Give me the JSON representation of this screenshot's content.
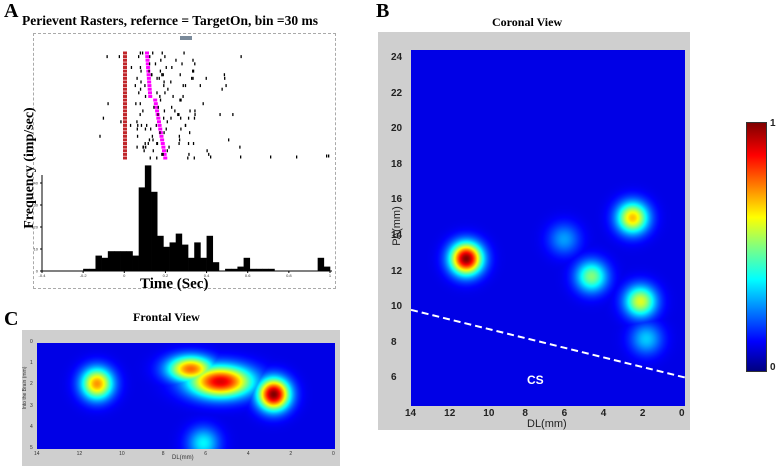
{
  "panels": {
    "a": {
      "letter": "A",
      "title": "Perievent Rasters, refernce = TargetOn, bin =30 ms",
      "ylabel": "Frequency (imp/sec)",
      "xlabel": "Time (Sec)",
      "marker_colors": {
        "reference": "#c0262a",
        "response": "#ff00ff",
        "spike": "#000000"
      }
    },
    "b": {
      "letter": "B",
      "title": "Coronal View",
      "ylabel": "PA(mm)",
      "xlabel": "DL(mm)",
      "annotation": "CS",
      "yticks": [
        "24",
        "22",
        "20",
        "18",
        "16",
        "14",
        "12",
        "10",
        "8",
        "6"
      ],
      "xticks": [
        "14",
        "12",
        "10",
        "8",
        "6",
        "4",
        "2",
        "0"
      ]
    },
    "c": {
      "letter": "C",
      "title": "Frontal View",
      "ylabel": "Into the Brain (mm)",
      "xlabel": "DL(mm)",
      "yticks": [
        "0",
        "1",
        "2",
        "3",
        "4",
        "5"
      ],
      "xticks": [
        "14",
        "12",
        "10",
        "8",
        "6",
        "4",
        "2",
        "0"
      ]
    },
    "colorbar": {
      "max_label": "1",
      "min_label": "0",
      "colormap": "jet"
    }
  },
  "chart_data": [
    {
      "type": "bar",
      "title": "Perievent Rasters, refernce = TargetOn, bin =30 ms",
      "xlabel": "Time (Sec)",
      "ylabel": "Frequency (imp/sec)",
      "bin_width": 0.03,
      "xlim": [
        -0.4,
        1.0
      ],
      "ylim": [
        0,
        48
      ],
      "xticks": [
        "-0.4",
        "-0.2",
        "0",
        "0.2",
        "0.4",
        "0.6",
        "0.8",
        "1"
      ],
      "yticks": [
        "0",
        "10",
        "20",
        "30",
        "40"
      ],
      "bins_start": [
        -0.2,
        -0.17,
        -0.14,
        -0.11,
        -0.08,
        -0.05,
        -0.02,
        0.01,
        0.04,
        0.07,
        0.1,
        0.13,
        0.16,
        0.19,
        0.22,
        0.25,
        0.28,
        0.31,
        0.34,
        0.37,
        0.4,
        0.43,
        0.46,
        0.49,
        0.52,
        0.55,
        0.58,
        0.61,
        0.64,
        0.67,
        0.7,
        0.73,
        0.76,
        0.79,
        0.82,
        0.85,
        0.88,
        0.91,
        0.94,
        0.97
      ],
      "values": [
        1,
        1,
        7,
        6,
        9,
        9,
        9,
        9,
        7,
        38,
        48,
        36,
        16,
        11,
        13,
        17,
        12,
        6,
        13,
        6,
        16,
        4,
        0,
        1,
        1,
        2,
        6,
        1,
        1,
        1,
        1,
        0,
        0,
        0,
        0,
        0,
        0,
        0,
        6,
        2
      ]
    },
    {
      "type": "heatmap",
      "title": "Coronal View",
      "xlabel": "DL(mm)",
      "ylabel": "PA(mm)",
      "xlim": [
        14,
        0
      ],
      "ylim": [
        4.5,
        24.5
      ],
      "color_range": [
        0,
        1
      ],
      "hotspots": [
        {
          "dl": 11.2,
          "pa": 12.8,
          "value": 1.0
        },
        {
          "dl": 2.7,
          "pa": 15.1,
          "value": 0.65
        },
        {
          "dl": 4.8,
          "pa": 11.8,
          "value": 0.45
        },
        {
          "dl": 2.3,
          "pa": 10.4,
          "value": 0.55
        },
        {
          "dl": 6.2,
          "pa": 13.9,
          "value": 0.2
        },
        {
          "dl": 2.0,
          "pa": 8.3,
          "value": 0.25
        }
      ],
      "cs_line": {
        "from": {
          "dl": 14,
          "pa": 9.9
        },
        "to": {
          "dl": 0,
          "pa": 6.1
        },
        "label": "CS"
      }
    },
    {
      "type": "heatmap",
      "title": "Frontal View",
      "xlabel": "DL(mm)",
      "ylabel": "Into the Brain (mm)",
      "xlim": [
        14,
        0
      ],
      "ylim": [
        0,
        5
      ],
      "color_range": [
        0,
        1
      ],
      "hotspots": [
        {
          "dl": 11.2,
          "depth": 1.9,
          "value": 0.7
        },
        {
          "dl": 5.4,
          "depth": 1.8,
          "value": 0.9
        },
        {
          "dl": 6.8,
          "depth": 1.2,
          "value": 0.75
        },
        {
          "dl": 2.9,
          "depth": 2.4,
          "value": 1.0
        },
        {
          "dl": 6.2,
          "depth": 4.7,
          "value": 0.3
        }
      ]
    }
  ]
}
